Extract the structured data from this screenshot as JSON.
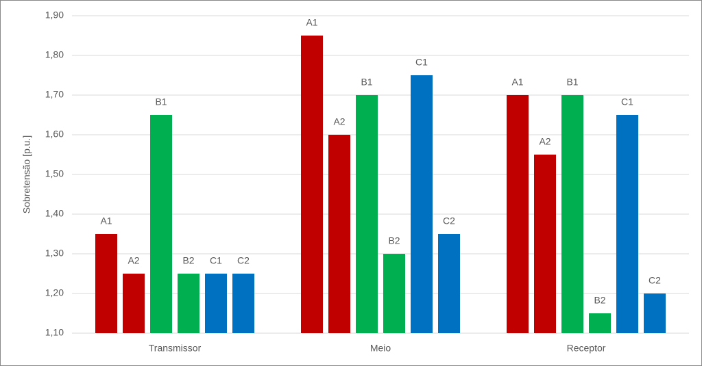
{
  "chart_data": {
    "type": "bar",
    "y_label": "Sobretensão [p.u.]",
    "categories": [
      "Transmissor",
      "Meio",
      "Receptor"
    ],
    "series": [
      {
        "name": "A1",
        "color": "#c00000",
        "values": [
          1.35,
          1.85,
          1.7
        ]
      },
      {
        "name": "A2",
        "color": "#c00000",
        "values": [
          1.25,
          1.6,
          1.55
        ]
      },
      {
        "name": "B1",
        "color": "#00b050",
        "values": [
          1.65,
          1.7,
          1.7
        ]
      },
      {
        "name": "B2",
        "color": "#00b050",
        "values": [
          1.25,
          1.3,
          1.15
        ]
      },
      {
        "name": "C1",
        "color": "#0070c0",
        "values": [
          1.25,
          1.75,
          1.65
        ]
      },
      {
        "name": "C2",
        "color": "#0070c0",
        "values": [
          1.25,
          1.35,
          1.2
        ]
      }
    ],
    "ylim": [
      1.1,
      1.9
    ],
    "yticks": [
      {
        "value": 1.1,
        "label": "1,10"
      },
      {
        "value": 1.2,
        "label": "1,20"
      },
      {
        "value": 1.3,
        "label": "1,30"
      },
      {
        "value": 1.4,
        "label": "1,40"
      },
      {
        "value": 1.5,
        "label": "1,50"
      },
      {
        "value": 1.6,
        "label": "1,60"
      },
      {
        "value": 1.7,
        "label": "1,70"
      },
      {
        "value": 1.8,
        "label": "1,80"
      },
      {
        "value": 1.9,
        "label": "1,90"
      }
    ],
    "grid": true
  }
}
